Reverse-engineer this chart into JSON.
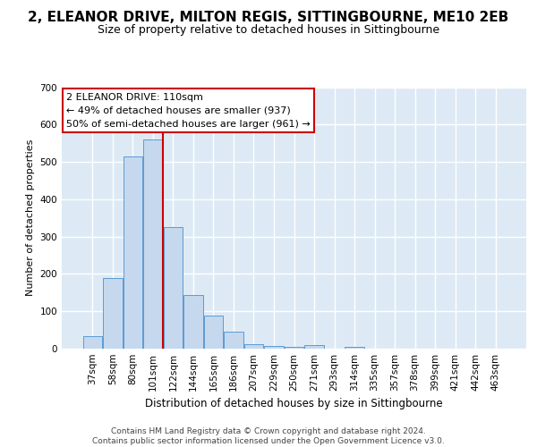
{
  "title": "2, ELEANOR DRIVE, MILTON REGIS, SITTINGBOURNE, ME10 2EB",
  "subtitle": "Size of property relative to detached houses in Sittingbourne",
  "xlabel": "Distribution of detached houses by size in Sittingbourne",
  "ylabel": "Number of detached properties",
  "categories": [
    "37sqm",
    "58sqm",
    "80sqm",
    "101sqm",
    "122sqm",
    "144sqm",
    "165sqm",
    "186sqm",
    "207sqm",
    "229sqm",
    "250sqm",
    "271sqm",
    "293sqm",
    "314sqm",
    "335sqm",
    "357sqm",
    "378sqm",
    "399sqm",
    "421sqm",
    "442sqm",
    "463sqm"
  ],
  "values": [
    33,
    190,
    515,
    560,
    325,
    143,
    88,
    46,
    13,
    8,
    5,
    10,
    0,
    5,
    0,
    0,
    0,
    0,
    0,
    0,
    0
  ],
  "bar_color": "#c5d8ed",
  "bar_edge_color": "#5b9bd5",
  "background_color": "#ddeaf5",
  "grid_color": "#ffffff",
  "red_line_x": 3.5,
  "annotation_text": "2 ELEANOR DRIVE: 110sqm\n← 49% of detached houses are smaller (937)\n50% of semi-detached houses are larger (961) →",
  "annotation_box_color": "#ffffff",
  "annotation_box_edge_color": "#cc0000",
  "footer": "Contains HM Land Registry data © Crown copyright and database right 2024.\nContains public sector information licensed under the Open Government Licence v3.0.",
  "ylim": [
    0,
    700
  ],
  "yticks": [
    0,
    100,
    200,
    300,
    400,
    500,
    600,
    700
  ],
  "title_fontsize": 11,
  "subtitle_fontsize": 9,
  "ylabel_fontsize": 8,
  "xlabel_fontsize": 8.5,
  "tick_fontsize": 7.5,
  "footer_fontsize": 6.5,
  "ann_fontsize": 8
}
